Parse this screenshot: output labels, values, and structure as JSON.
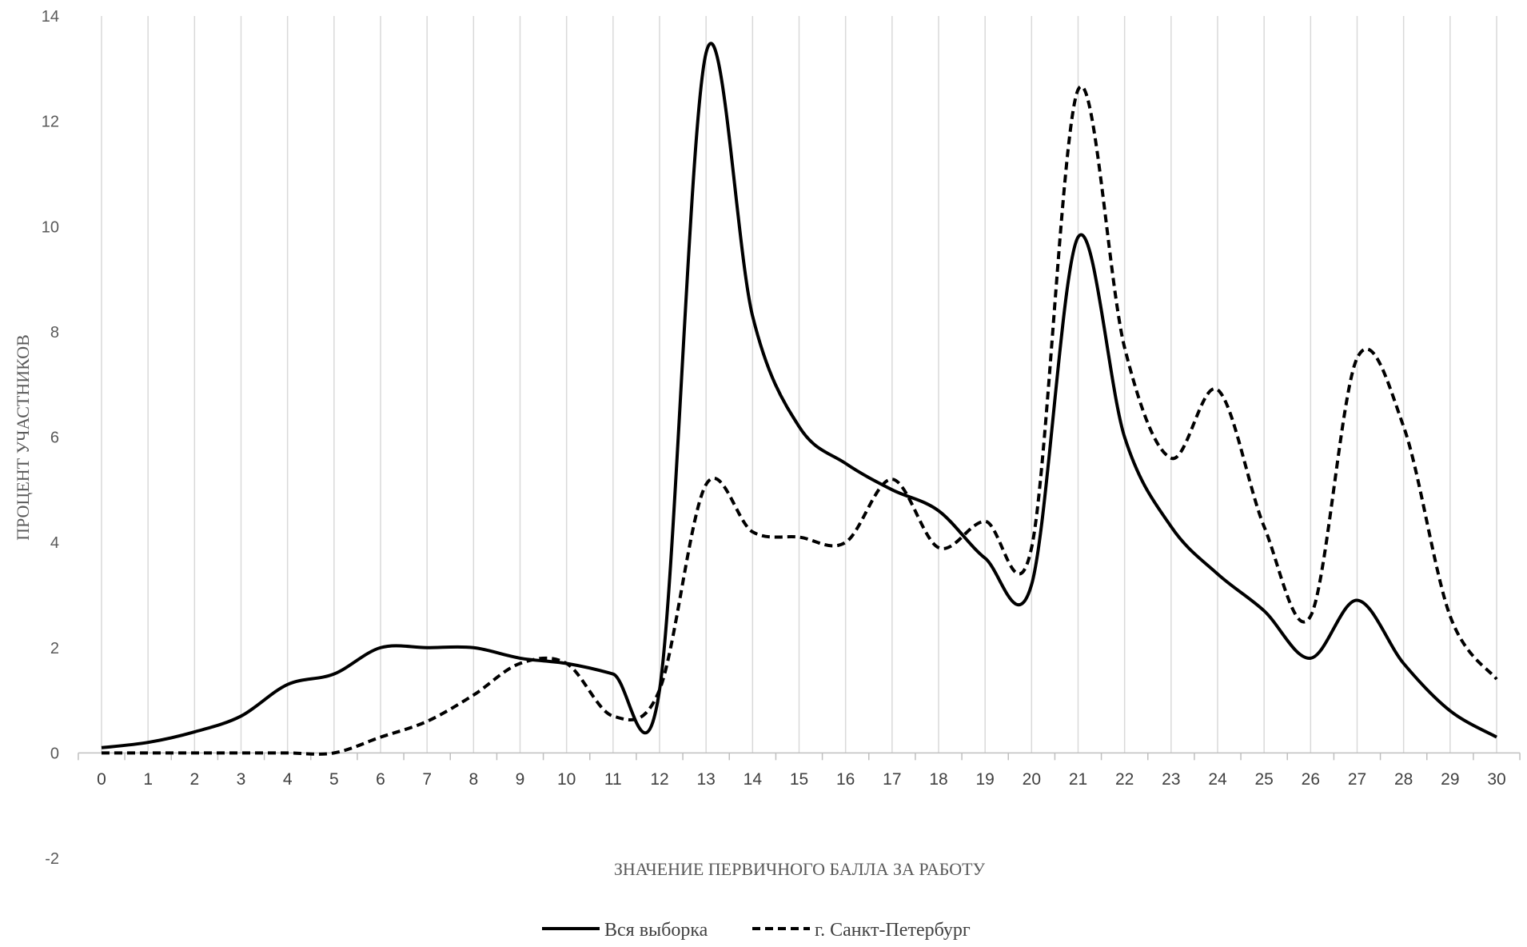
{
  "chart_data": {
    "type": "line",
    "title": "",
    "xlabel": "ЗНАЧЕНИЕ ПЕРВИЧНОГО БАЛЛА ЗА РАБОТУ",
    "ylabel": "ПРОЦЕНТ УЧАСТНИКОВ",
    "x": [
      0,
      1,
      2,
      3,
      4,
      5,
      6,
      7,
      8,
      9,
      10,
      11,
      12,
      13,
      14,
      15,
      16,
      17,
      18,
      19,
      20,
      21,
      22,
      23,
      24,
      25,
      26,
      27,
      28,
      29,
      30
    ],
    "x_tick_labels": [
      "0",
      "1",
      "2",
      "3",
      "4",
      "5",
      "6",
      "7",
      "8",
      "9",
      "10",
      "11",
      "12",
      "13",
      "14",
      "15",
      "16",
      "17",
      "18",
      "19",
      "20",
      "21",
      "22",
      "23",
      "24",
      "25",
      "26",
      "27",
      "28",
      "29",
      "30"
    ],
    "ylim": [
      -2,
      14
    ],
    "y_ticks": [
      -2,
      0,
      2,
      4,
      6,
      8,
      10,
      12,
      14
    ],
    "y_tick_labels": [
      "-2",
      "0",
      "2",
      "4",
      "6",
      "8",
      "10",
      "12",
      "14"
    ],
    "grid": "vertical lines at each x category",
    "legend_position": "bottom",
    "smooth": true,
    "series": [
      {
        "name": "Вся выборка",
        "line_style": "solid",
        "color": "#000000",
        "values": [
          0.1,
          0.2,
          0.4,
          0.7,
          1.3,
          1.5,
          2.0,
          2.0,
          2.0,
          1.8,
          1.7,
          1.5,
          1.2,
          13.3,
          8.3,
          6.2,
          5.5,
          5.0,
          4.6,
          3.7,
          3.2,
          9.8,
          6.0,
          4.3,
          3.4,
          2.7,
          1.8,
          2.9,
          1.7,
          0.8,
          0.3
        ]
      },
      {
        "name": "г. Санкт-Петербург",
        "line_style": "dashed",
        "color": "#000000",
        "values": [
          0,
          0,
          0,
          0,
          0,
          0,
          0.3,
          0.6,
          1.1,
          1.7,
          1.7,
          0.7,
          1.2,
          5.1,
          4.2,
          4.1,
          4.0,
          5.2,
          3.9,
          4.4,
          3.9,
          12.6,
          7.7,
          5.6,
          6.9,
          4.3,
          2.6,
          7.5,
          6.2,
          2.6,
          1.4
        ]
      }
    ]
  }
}
